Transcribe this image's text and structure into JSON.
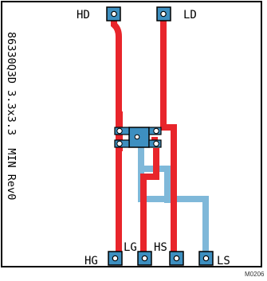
{
  "diagram": {
    "pins": {
      "hd": "HD",
      "ld": "LD",
      "hg": "HG",
      "lg": "LG",
      "hs": "HS",
      "ls": "LS"
    },
    "side_label": "86330Q3D 3.3x3.3  MIN Rev0",
    "doc_code": "M0206",
    "colors": {
      "top_trace": "#e8252b",
      "bottom_trace": "#7fb8d9",
      "pad_fill": "#3d8fc0",
      "pad_dark": "#1f5d86",
      "outline": "#000000"
    }
  }
}
